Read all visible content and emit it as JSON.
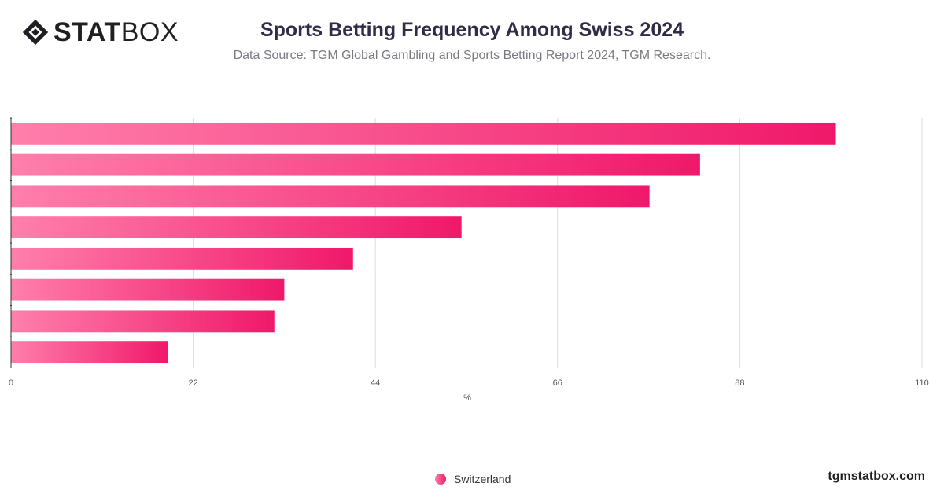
{
  "header": {
    "logo_bold": "STAT",
    "logo_regular": "BOX",
    "title": "Sports Betting Frequency Among Swiss 2024",
    "subtitle": "Data Source: TGM Global Gambling and Sports Betting Report 2024, TGM Research."
  },
  "footer": {
    "site": "tgmstatbox.com"
  },
  "colors": {
    "bar_start": "#ff7fab",
    "bar_end": "#f0186a",
    "grid": "#dddddd",
    "axis": "#333333"
  },
  "chart_data": {
    "type": "bar",
    "orientation": "horizontal",
    "categories": [
      "",
      "",
      "",
      "",
      "",
      "",
      "",
      ""
    ],
    "series": [
      {
        "name": "Switzerland",
        "values": [
          99.6,
          83.2,
          77.1,
          54.4,
          41.3,
          33.0,
          31.8,
          19.0
        ]
      }
    ],
    "xlabel": "%",
    "ylabel": "",
    "xlim": [
      0,
      110
    ],
    "xticks": [
      0,
      22,
      44,
      66,
      88,
      110
    ],
    "grid": true,
    "legend": "bottom-center"
  }
}
